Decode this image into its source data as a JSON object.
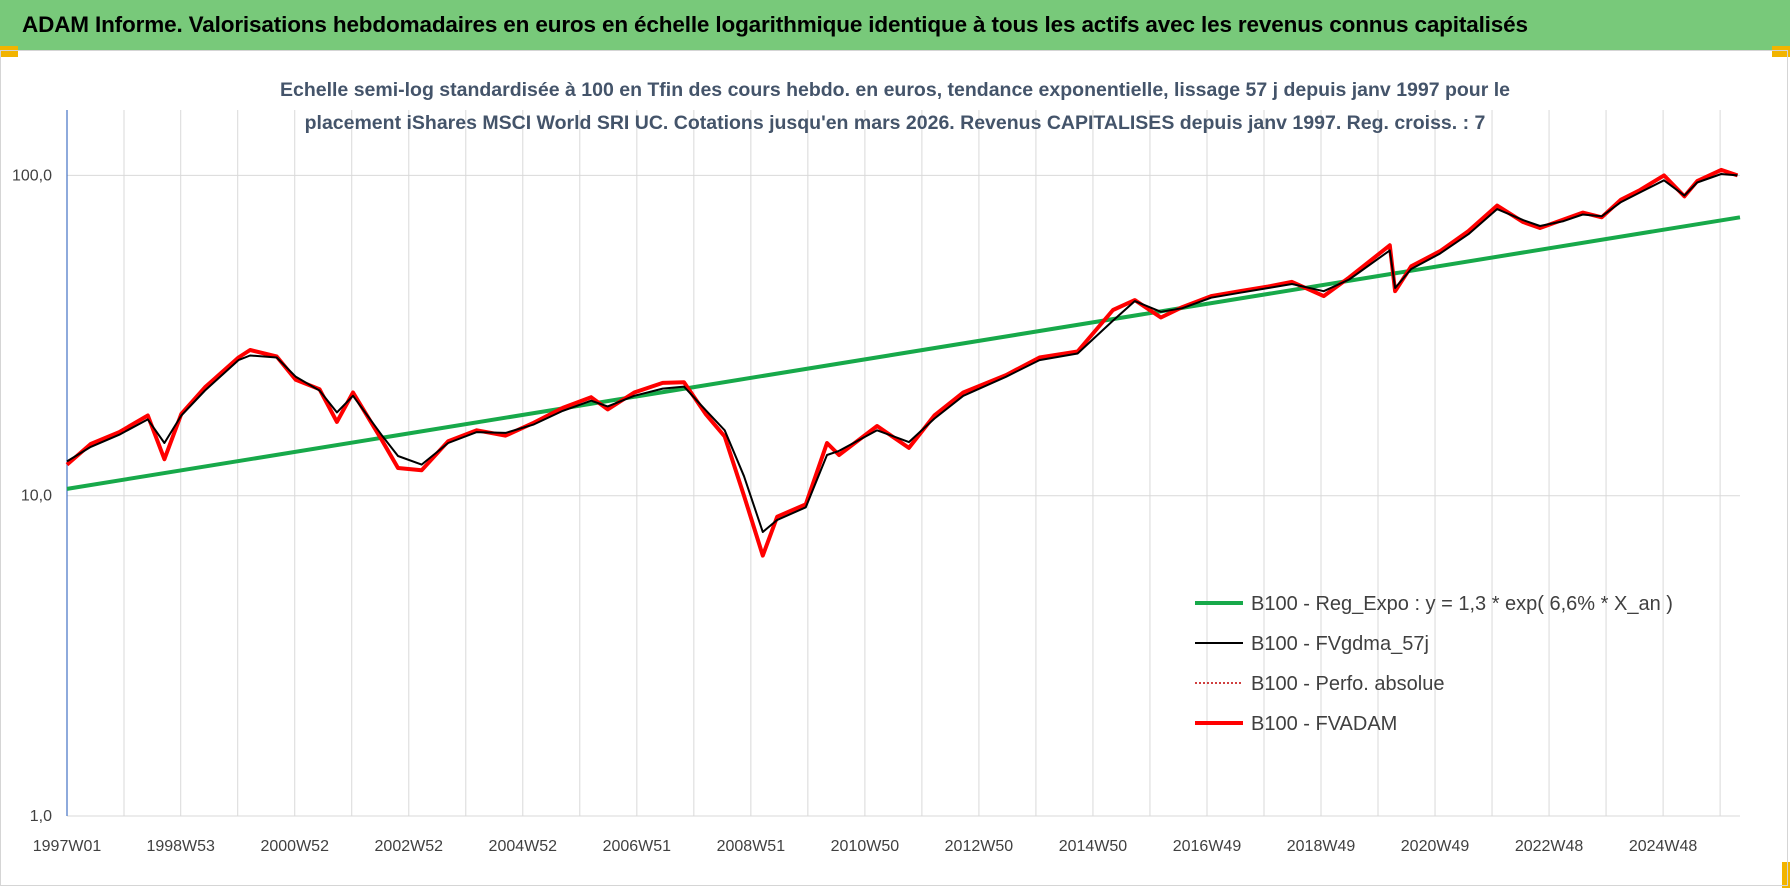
{
  "header": {
    "title": "ADAM Informe. Valorisations hebdomadaires en euros en échelle logarithmique identique à tous les actifs avec les revenus connus capitalisés"
  },
  "colors": {
    "banner": "#78c97a",
    "corner": "#f2b400",
    "regression": "#17a94a",
    "moving_average": "#000000",
    "absolute_perf": "#c00000",
    "fvadam": "#ff0000",
    "grid": "#d9d9d9",
    "axis": "#4472c4"
  },
  "chart_data": {
    "type": "line",
    "title_lines": [
      "Echelle semi-log standardisée à 100 en Tfin des cours hebdo. en euros, tendance exponentielle, lissage 57 j depuis janv 1997 pour le",
      "placement iShares MSCI World SRI UC. Cotations jusqu'en mars 2026. Revenus CAPITALISES depuis janv 1997. Reg. croiss. : 7"
    ],
    "y_scale": "log",
    "ylim": [
      1,
      160
    ],
    "y_ticks": [
      {
        "value": 100,
        "label": "100,0"
      },
      {
        "value": 10,
        "label": "10,0"
      },
      {
        "value": 1,
        "label": "1,0"
      }
    ],
    "xlim": [
      "1997-01-01",
      "2026-03-31"
    ],
    "x_ticks": [
      {
        "date": "1997-01-01",
        "label": "1997W01"
      },
      {
        "date": "1998-12-28",
        "label": "1998W53"
      },
      {
        "date": "2000-12-25",
        "label": "2000W52"
      },
      {
        "date": "2002-12-23",
        "label": "2002W52"
      },
      {
        "date": "2004-12-20",
        "label": "2004W52"
      },
      {
        "date": "2006-12-18",
        "label": "2006W51"
      },
      {
        "date": "2008-12-15",
        "label": "2008W51"
      },
      {
        "date": "2010-12-13",
        "label": "2010W50"
      },
      {
        "date": "2012-12-10",
        "label": "2012W50"
      },
      {
        "date": "2014-12-08",
        "label": "2014W50"
      },
      {
        "date": "2016-12-05",
        "label": "2016W49"
      },
      {
        "date": "2018-12-03",
        "label": "2018W49"
      },
      {
        "date": "2020-11-30",
        "label": "2020W49"
      },
      {
        "date": "2022-11-28",
        "label": "2022W48"
      },
      {
        "date": "2024-11-25",
        "label": "2024W48"
      }
    ],
    "grid": "vertical-and-horizontal",
    "legend_position": "bottom-right",
    "series": [
      {
        "name": "B100 - Reg_Expo : y = 1,3 * exp( 6,6% *  X_an )",
        "style": "thick-line",
        "color": "#17a94a",
        "x": [
          "1997-01-01",
          "2026-03-31"
        ],
        "y": [
          10.5,
          74
        ]
      },
      {
        "name": "B100 - FVgdma_57j",
        "style": "line",
        "color": "#000000",
        "x": [
          "1997-01-01",
          "1997-06-01",
          "1997-12-01",
          "1998-06-01",
          "1998-09-15",
          "1999-01-01",
          "1999-06-01",
          "2000-01-01",
          "2000-03-15",
          "2000-09-01",
          "2001-01-01",
          "2001-06-01",
          "2001-09-20",
          "2002-01-01",
          "2002-07-01",
          "2002-10-15",
          "2003-03-15",
          "2003-09-01",
          "2004-03-01",
          "2004-09-01",
          "2005-03-01",
          "2005-09-01",
          "2006-03-01",
          "2006-06-15",
          "2006-12-01",
          "2007-06-01",
          "2007-10-15",
          "2008-03-01",
          "2008-07-01",
          "2008-11-01",
          "2009-03-01",
          "2009-06-01",
          "2009-12-01",
          "2010-04-15",
          "2010-07-01",
          "2011-03-01",
          "2011-09-20",
          "2012-03-01",
          "2012-09-01",
          "2013-06-01",
          "2014-01-01",
          "2014-09-01",
          "2015-04-15",
          "2015-09-01",
          "2016-02-15",
          "2016-07-01",
          "2017-01-01",
          "2017-07-01",
          "2018-01-01",
          "2018-06-01",
          "2018-12-20",
          "2019-06-01",
          "2020-02-15",
          "2020-03-20",
          "2020-07-01",
          "2021-01-01",
          "2021-07-01",
          "2021-12-31",
          "2022-06-15",
          "2022-10-01",
          "2023-03-01",
          "2023-07-01",
          "2023-10-30",
          "2024-03-01",
          "2024-07-01",
          "2024-12-01",
          "2025-04-10",
          "2025-07-01",
          "2025-12-01",
          "2026-03-15"
        ],
        "y": [
          12.8,
          14.2,
          15.5,
          17.3,
          14.6,
          17.8,
          21.3,
          26.5,
          27.4,
          27.0,
          23.5,
          21.3,
          18.2,
          20.5,
          15.5,
          13.3,
          12.5,
          14.6,
          15.8,
          15.7,
          16.7,
          18.4,
          19.8,
          19.0,
          20.5,
          21.6,
          21.9,
          18.5,
          16.0,
          11.5,
          7.7,
          8.4,
          9.2,
          13.4,
          13.8,
          16.0,
          14.7,
          17.4,
          20.5,
          23.5,
          26.5,
          27.8,
          35.2,
          40.5,
          37.5,
          38.5,
          41.5,
          43.0,
          44.5,
          45.8,
          43.5,
          47.3,
          58.3,
          44.5,
          51.0,
          57.0,
          65.5,
          78.5,
          72.5,
          69.5,
          72.0,
          75.5,
          74.5,
          82.5,
          88.5,
          96.5,
          86.5,
          95.0,
          101.0,
          100.0
        ]
      },
      {
        "name": "B100 - Perfo. absolue",
        "style": "dotted-line",
        "color": "#c00000",
        "x": [
          "1997-01-01",
          "1997-06-01",
          "1997-12-01",
          "1998-06-01",
          "1998-09-15",
          "1999-01-01",
          "1999-06-01",
          "2000-01-01",
          "2000-03-15",
          "2000-09-01",
          "2001-01-01",
          "2001-06-01",
          "2001-09-20",
          "2002-01-01",
          "2002-07-01",
          "2002-10-15",
          "2003-03-15",
          "2003-09-01",
          "2004-03-01",
          "2004-09-01",
          "2005-03-01",
          "2005-09-01",
          "2006-03-01",
          "2006-06-15",
          "2006-12-01",
          "2007-06-01",
          "2007-10-15",
          "2008-03-01",
          "2008-07-01",
          "2008-11-01",
          "2009-03-01",
          "2009-06-01",
          "2009-12-01",
          "2010-04-15",
          "2010-07-01",
          "2011-03-01",
          "2011-09-20",
          "2012-03-01",
          "2012-09-01",
          "2013-06-01",
          "2014-01-01",
          "2014-09-01",
          "2015-04-15",
          "2015-09-01",
          "2016-02-15",
          "2016-07-01",
          "2017-01-01",
          "2017-07-01",
          "2018-01-01",
          "2018-06-01",
          "2018-12-20",
          "2019-06-01",
          "2020-02-15",
          "2020-03-20",
          "2020-07-01",
          "2021-01-01",
          "2021-07-01",
          "2021-12-31",
          "2022-06-15",
          "2022-10-01",
          "2023-03-01",
          "2023-07-01",
          "2023-10-30",
          "2024-03-01",
          "2024-07-01",
          "2024-12-01",
          "2025-04-10",
          "2025-07-01",
          "2025-12-01",
          "2026-03-15"
        ],
        "y": [
          12.5,
          14.5,
          15.8,
          17.8,
          13.0,
          18.0,
          21.8,
          27.0,
          28.5,
          27.2,
          23.0,
          21.5,
          17.0,
          21.0,
          15.0,
          12.2,
          12.0,
          14.8,
          16.0,
          15.4,
          16.9,
          18.8,
          20.3,
          18.6,
          21.0,
          22.5,
          22.6,
          18.0,
          15.3,
          10.0,
          6.5,
          8.6,
          9.4,
          14.6,
          13.4,
          16.5,
          14.1,
          17.8,
          21.0,
          23.8,
          27.0,
          28.2,
          38.0,
          40.8,
          36.0,
          38.8,
          42.0,
          43.5,
          45.0,
          46.5,
          42.0,
          48.0,
          60.5,
          43.5,
          52.0,
          58.0,
          67.0,
          80.5,
          71.5,
          68.5,
          72.8,
          76.5,
          74.0,
          84.0,
          90.0,
          100.0,
          86.0,
          96.0,
          104.0,
          100.0
        ]
      },
      {
        "name": "B100 - FVADAM",
        "style": "thick-line",
        "color": "#ff0000",
        "x": [
          "1997-01-01",
          "1997-06-01",
          "1997-12-01",
          "1998-06-01",
          "1998-09-15",
          "1999-01-01",
          "1999-06-01",
          "2000-01-01",
          "2000-03-15",
          "2000-09-01",
          "2001-01-01",
          "2001-06-01",
          "2001-09-20",
          "2002-01-01",
          "2002-07-01",
          "2002-10-15",
          "2003-03-15",
          "2003-09-01",
          "2004-03-01",
          "2004-09-01",
          "2005-03-01",
          "2005-09-01",
          "2006-03-01",
          "2006-06-15",
          "2006-12-01",
          "2007-06-01",
          "2007-10-15",
          "2008-03-01",
          "2008-07-01",
          "2008-11-01",
          "2009-03-01",
          "2009-06-01",
          "2009-12-01",
          "2010-04-15",
          "2010-07-01",
          "2011-03-01",
          "2011-09-20",
          "2012-03-01",
          "2012-09-01",
          "2013-06-01",
          "2014-01-01",
          "2014-09-01",
          "2015-04-15",
          "2015-09-01",
          "2016-02-15",
          "2016-07-01",
          "2017-01-01",
          "2017-07-01",
          "2018-01-01",
          "2018-06-01",
          "2018-12-20",
          "2019-06-01",
          "2020-02-15",
          "2020-03-20",
          "2020-07-01",
          "2021-01-01",
          "2021-07-01",
          "2021-12-31",
          "2022-06-15",
          "2022-10-01",
          "2023-03-01",
          "2023-07-01",
          "2023-10-30",
          "2024-03-01",
          "2024-07-01",
          "2024-12-01",
          "2025-04-10",
          "2025-07-01",
          "2025-12-01",
          "2026-03-15"
        ],
        "y": [
          12.5,
          14.5,
          15.8,
          17.8,
          13.0,
          18.0,
          21.8,
          27.0,
          28.5,
          27.2,
          23.0,
          21.5,
          17.0,
          21.0,
          15.0,
          12.2,
          12.0,
          14.8,
          16.0,
          15.4,
          16.9,
          18.8,
          20.3,
          18.6,
          21.0,
          22.5,
          22.6,
          18.0,
          15.3,
          10.0,
          6.5,
          8.6,
          9.4,
          14.6,
          13.4,
          16.5,
          14.1,
          17.8,
          21.0,
          23.8,
          27.0,
          28.2,
          38.0,
          40.8,
          36.0,
          38.8,
          42.0,
          43.5,
          45.0,
          46.5,
          42.0,
          48.0,
          60.5,
          43.5,
          52.0,
          58.0,
          67.0,
          80.5,
          71.5,
          68.5,
          72.8,
          76.5,
          74.0,
          84.0,
          90.0,
          100.0,
          86.0,
          96.0,
          104.0,
          100.0
        ]
      }
    ]
  }
}
